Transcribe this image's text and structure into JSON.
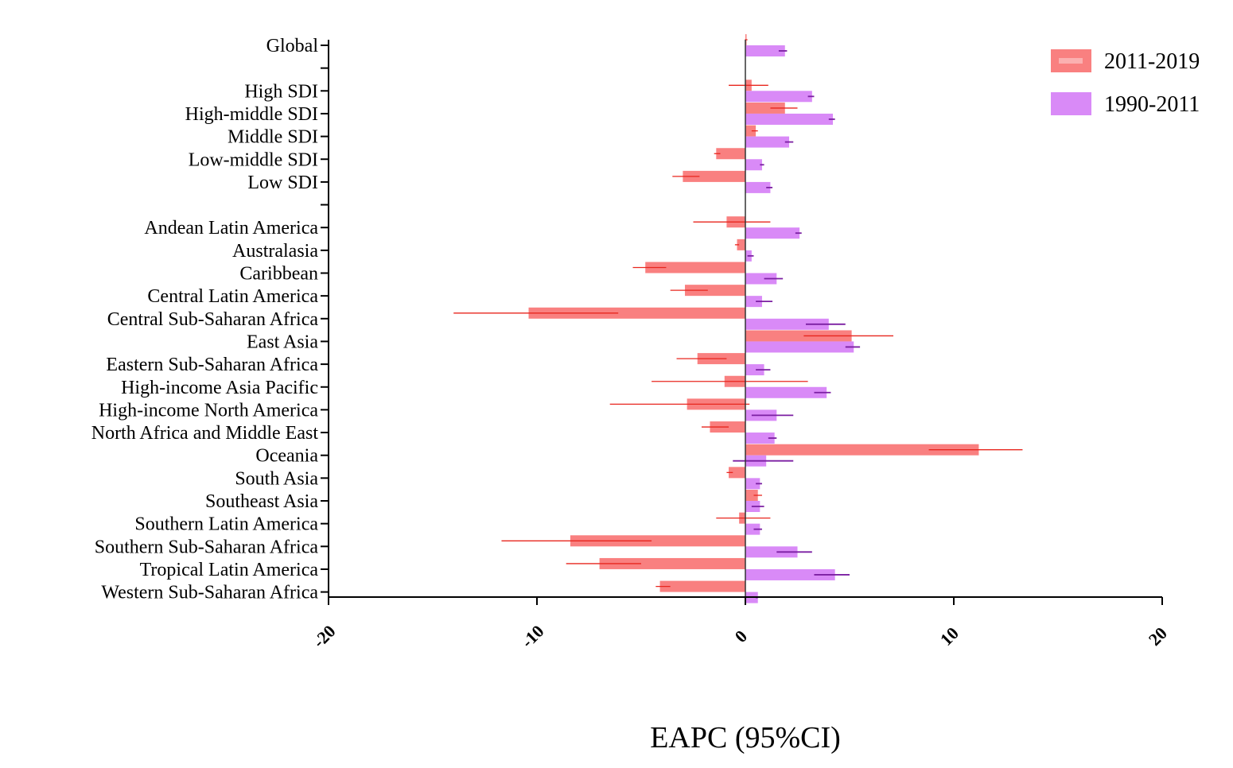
{
  "chart_data": {
    "type": "bar",
    "orientation": "horizontal",
    "title": "",
    "xlabel": "EAPC (95%CI)",
    "ylabel": "",
    "xlim": [
      -20,
      20
    ],
    "x_ticks": [
      "-20",
      "-10",
      "0",
      "10",
      "20"
    ],
    "legend_position": "top-right",
    "categories": [
      "Global",
      "",
      "High SDI",
      "High-middle SDI",
      "Middle SDI",
      "Low-middle SDI",
      "Low SDI",
      "",
      "Andean Latin America",
      "Australasia",
      "Caribbean",
      "Central Latin America",
      "Central Sub-Saharan Africa",
      "East Asia",
      "Eastern Sub-Saharan Africa",
      "High-income Asia Pacific",
      "High-income North America",
      "North Africa and Middle East",
      "Oceania",
      "South Asia",
      "Southeast Asia",
      "Southern Latin America",
      "Southern Sub-Saharan Africa",
      "Tropical Latin America",
      "Western Sub-Saharan Africa"
    ],
    "series": [
      {
        "name": "2011-2019",
        "color": "#F98080",
        "error_color": "#E8261E",
        "values": [
          0.05,
          null,
          0.3,
          1.9,
          0.5,
          -1.4,
          -3.0,
          null,
          -0.9,
          -0.4,
          -4.8,
          -2.9,
          -10.4,
          5.1,
          -2.3,
          -1.0,
          -2.8,
          -1.7,
          11.2,
          -0.8,
          0.6,
          -0.3,
          -8.4,
          -7.0,
          -4.1
        ],
        "ci_low": [
          -0.02,
          null,
          -0.8,
          1.2,
          0.3,
          -1.5,
          -3.5,
          null,
          -2.5,
          -0.5,
          -5.4,
          -3.6,
          -14.0,
          2.8,
          -3.3,
          -4.5,
          -6.5,
          -2.1,
          8.8,
          -0.9,
          0.4,
          -1.4,
          -11.7,
          -8.6,
          -4.3
        ],
        "ci_high": [
          0.1,
          null,
          1.1,
          2.5,
          0.6,
          -1.2,
          -2.2,
          null,
          1.2,
          -0.3,
          -3.8,
          -1.8,
          -6.1,
          7.1,
          -0.9,
          3.0,
          0.2,
          -0.8,
          13.3,
          -0.6,
          0.8,
          1.2,
          -4.5,
          -5.0,
          -3.6
        ]
      },
      {
        "name": "1990-2011",
        "color": "#D98AF7",
        "error_color": "#7B1FA2",
        "values": [
          1.9,
          null,
          3.2,
          4.2,
          2.1,
          0.8,
          1.2,
          null,
          2.6,
          0.3,
          1.5,
          0.8,
          4.0,
          5.2,
          0.9,
          3.9,
          1.5,
          1.4,
          1.0,
          0.7,
          0.7,
          0.7,
          2.5,
          4.3,
          0.6
        ],
        "ci_low": [
          1.6,
          null,
          3.0,
          4.0,
          1.9,
          0.7,
          1.0,
          null,
          2.4,
          0.1,
          0.9,
          0.5,
          2.9,
          4.8,
          0.5,
          3.3,
          0.3,
          1.1,
          -0.6,
          0.5,
          0.3,
          0.4,
          1.5,
          3.3,
          0.5
        ],
        "ci_high": [
          2.0,
          null,
          3.3,
          4.3,
          2.3,
          0.9,
          1.3,
          null,
          2.7,
          0.4,
          1.8,
          1.3,
          4.8,
          5.5,
          1.2,
          4.1,
          2.3,
          1.5,
          2.3,
          0.8,
          0.9,
          0.8,
          3.2,
          5.0,
          0.6
        ]
      }
    ]
  }
}
